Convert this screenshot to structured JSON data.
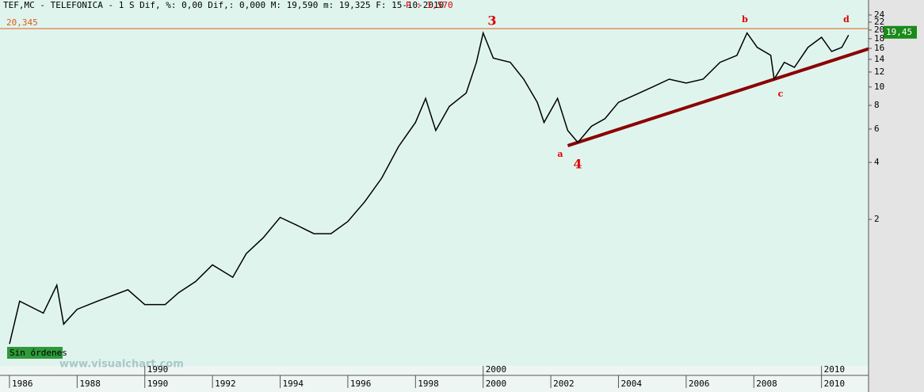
{
  "chart_data": {
    "type": "line",
    "title": "TEF,MC - TELEFONICA - 1 S Dif, %: 0,00 Dif,: 0,000 M: 19,590 m: 19,325 F: 15-10-2010",
    "subtitle": "P : 1,570",
    "yscale": "log",
    "xlim": [
      1985.72,
      2011.39
    ],
    "ylim": [
      0.337,
      28.8
    ],
    "xticks": [
      1986,
      1988,
      1990,
      1992,
      1994,
      1996,
      1998,
      2000,
      2002,
      2004,
      2006,
      2008,
      2010
    ],
    "decade_ticks": [
      1990,
      2000,
      2010
    ],
    "yticks": [
      2,
      4,
      6,
      8,
      10,
      12,
      14,
      16,
      18,
      20,
      22,
      24
    ],
    "series": [
      {
        "name": "TEF,MC",
        "color": "#000000",
        "x": [
          1986.0,
          1986.3,
          1987.0,
          1987.4,
          1987.6,
          1988.0,
          1988.6,
          1989.5,
          1990.0,
          1990.6,
          1991.0,
          1991.5,
          1992.0,
          1992.6,
          1993.0,
          1993.5,
          1994.0,
          1994.5,
          1995.0,
          1995.5,
          1996.0,
          1996.5,
          1997.0,
          1997.5,
          1998.0,
          1998.3,
          1998.6,
          1999.0,
          1999.5,
          1999.8,
          2000.0,
          2000.3,
          2000.8,
          2001.2,
          2001.6,
          2001.8,
          2002.2,
          2002.5,
          2002.8,
          2003.2,
          2003.6,
          2004.0,
          2004.5,
          2005.0,
          2005.5,
          2006.0,
          2006.5,
          2007.0,
          2007.5,
          2007.8,
          2008.1,
          2008.5,
          2008.6,
          2008.9,
          2009.2,
          2009.6,
          2010.0,
          2010.3,
          2010.6,
          2010.8
        ],
        "values": [
          0.44,
          0.74,
          0.64,
          0.9,
          0.56,
          0.67,
          0.74,
          0.85,
          0.71,
          0.71,
          0.82,
          0.94,
          1.15,
          0.99,
          1.32,
          1.6,
          2.05,
          1.86,
          1.68,
          1.68,
          1.95,
          2.48,
          3.3,
          4.85,
          6.5,
          8.7,
          5.9,
          7.9,
          9.3,
          13.5,
          19.3,
          14.2,
          13.5,
          11.0,
          8.3,
          6.5,
          8.7,
          5.9,
          5.1,
          6.2,
          6.8,
          8.3,
          9.1,
          10,
          11,
          10.5,
          11,
          13.5,
          14.7,
          19.3,
          16.2,
          14.7,
          11,
          13.5,
          12.7,
          16.2,
          18.3,
          15.4,
          16.2,
          18.8
        ]
      }
    ],
    "trendline": {
      "color": "#8b0000",
      "x": [
        2002.5,
        2011.39
      ],
      "values": [
        4.9,
        15.9
      ]
    },
    "reference_line": {
      "value": 20.345,
      "label": "20,345",
      "color": "#e05a1a"
    },
    "last_price": {
      "value": 19.45,
      "label": "19,45"
    },
    "annotations": [
      "3",
      "4",
      "a",
      "b",
      "c",
      "d"
    ],
    "status": "Sin órdenes",
    "watermark": "www.visualchart.com"
  }
}
